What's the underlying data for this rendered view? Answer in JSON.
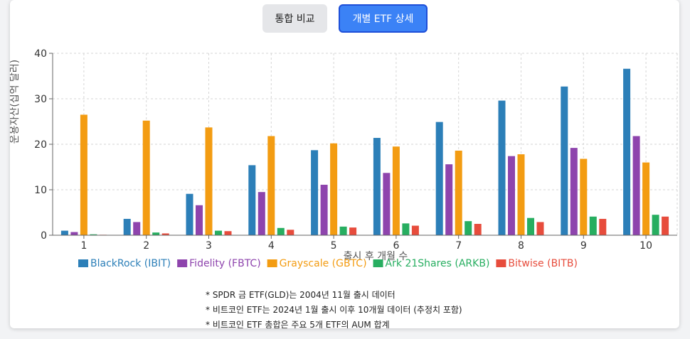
{
  "tabs": [
    {
      "label": "통합 비교",
      "active": false
    },
    {
      "label": "개별 ETF 상세",
      "active": true
    }
  ],
  "colors": {
    "active_tab": "#3b82f6",
    "inactive_tab": "#e5e6e9"
  },
  "chart_data": {
    "type": "bar",
    "xlabel": "출시 후 개월 수",
    "ylabel": "운용자산(십억 달러)",
    "ylim": [
      0,
      40
    ],
    "yticks": [
      0,
      10,
      20,
      30,
      40
    ],
    "grid": true,
    "legend_position": "bottom",
    "categories": [
      "1",
      "2",
      "3",
      "4",
      "5",
      "6",
      "7",
      "8",
      "9",
      "10"
    ],
    "series": [
      {
        "name": "BlackRock (IBIT)",
        "color": "#2c7fb8",
        "values": [
          1.0,
          3.6,
          9.1,
          15.4,
          18.7,
          21.4,
          24.9,
          29.6,
          32.7,
          36.6
        ]
      },
      {
        "name": "Fidelity (FBTC)",
        "color": "#8e44ad",
        "values": [
          0.7,
          2.9,
          6.6,
          9.5,
          11.1,
          13.7,
          15.6,
          17.4,
          19.2,
          21.8
        ]
      },
      {
        "name": "Grayscale (GBTC)",
        "color": "#f39c12",
        "values": [
          26.5,
          25.2,
          23.7,
          21.8,
          20.2,
          19.5,
          18.6,
          17.8,
          16.8,
          16.0
        ]
      },
      {
        "name": "Ark 21Shares (ARKB)",
        "color": "#27ae60",
        "values": [
          0.2,
          0.6,
          1.0,
          1.6,
          1.9,
          2.6,
          3.1,
          3.8,
          4.1,
          4.5
        ]
      },
      {
        "name": "Bitwise (BITB)",
        "color": "#e74c3c",
        "values": [
          0.1,
          0.4,
          0.9,
          1.2,
          1.7,
          2.1,
          2.5,
          2.9,
          3.6,
          4.1
        ]
      }
    ]
  },
  "notes": [
    "* SPDR 금 ETF(GLD)는 2004년 11월 출시 데이터",
    "* 비트코인 ETF는 2024년 1월 출시 이후 10개월 데이터 (추정치 포함)",
    "* 비트코인 ETF 총합은 주요 5개 ETF의 AUM 합계"
  ]
}
